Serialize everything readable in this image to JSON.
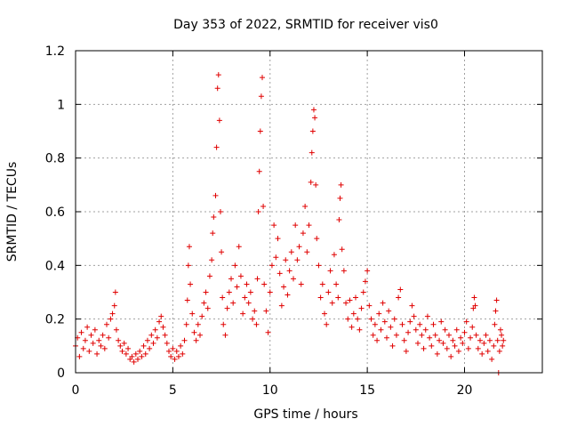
{
  "chart_data": {
    "type": "scatter",
    "title": "Day 353 of 2022, SRMTID for receiver vis0",
    "xlabel": "GPS time / hours",
    "ylabel": "SRMTID / TECUs",
    "xlim": [
      0,
      24
    ],
    "ylim": [
      0,
      1.2
    ],
    "x_ticks": [
      0,
      5,
      10,
      15,
      20
    ],
    "x_tick_labels": [
      "0",
      "5",
      "10",
      "15",
      "20"
    ],
    "y_ticks": [
      0,
      0.2,
      0.4,
      0.6,
      0.8,
      1,
      1.2
    ],
    "y_tick_labels": [
      "0",
      "0.2",
      "0.4",
      "0.6",
      "0.8",
      "1",
      "1.2"
    ],
    "grid": true,
    "marker": "plus",
    "color": "#e00000",
    "series": [
      {
        "name": "vis0",
        "points": [
          [
            0.0,
            0.1
          ],
          [
            0.1,
            0.13
          ],
          [
            0.2,
            0.06
          ],
          [
            0.3,
            0.15
          ],
          [
            0.4,
            0.09
          ],
          [
            0.5,
            0.12
          ],
          [
            0.6,
            0.17
          ],
          [
            0.7,
            0.08
          ],
          [
            0.8,
            0.14
          ],
          [
            0.9,
            0.11
          ],
          [
            1.0,
            0.16
          ],
          [
            1.1,
            0.07
          ],
          [
            1.2,
            0.12
          ],
          [
            1.3,
            0.1
          ],
          [
            1.4,
            0.14
          ],
          [
            1.5,
            0.09
          ],
          [
            1.6,
            0.18
          ],
          [
            1.7,
            0.13
          ],
          [
            1.8,
            0.2
          ],
          [
            1.9,
            0.22
          ],
          [
            2.0,
            0.25
          ],
          [
            2.05,
            0.3
          ],
          [
            2.1,
            0.16
          ],
          [
            2.2,
            0.12
          ],
          [
            2.3,
            0.1
          ],
          [
            2.4,
            0.08
          ],
          [
            2.5,
            0.11
          ],
          [
            2.6,
            0.07
          ],
          [
            2.7,
            0.09
          ],
          [
            2.8,
            0.05
          ],
          [
            2.9,
            0.06
          ],
          [
            3.0,
            0.04
          ],
          [
            3.1,
            0.07
          ],
          [
            3.2,
            0.05
          ],
          [
            3.3,
            0.08
          ],
          [
            3.4,
            0.06
          ],
          [
            3.5,
            0.1
          ],
          [
            3.6,
            0.07
          ],
          [
            3.7,
            0.12
          ],
          [
            3.8,
            0.09
          ],
          [
            3.9,
            0.14
          ],
          [
            4.0,
            0.11
          ],
          [
            4.1,
            0.16
          ],
          [
            4.2,
            0.13
          ],
          [
            4.3,
            0.19
          ],
          [
            4.4,
            0.21
          ],
          [
            4.5,
            0.17
          ],
          [
            4.6,
            0.14
          ],
          [
            4.7,
            0.11
          ],
          [
            4.8,
            0.08
          ],
          [
            4.9,
            0.06
          ],
          [
            5.0,
            0.09
          ],
          [
            5.1,
            0.05
          ],
          [
            5.2,
            0.08
          ],
          [
            5.3,
            0.06
          ],
          [
            5.4,
            0.1
          ],
          [
            5.5,
            0.07
          ],
          [
            5.6,
            0.12
          ],
          [
            5.7,
            0.18
          ],
          [
            5.75,
            0.27
          ],
          [
            5.8,
            0.4
          ],
          [
            5.85,
            0.47
          ],
          [
            5.9,
            0.33
          ],
          [
            6.0,
            0.22
          ],
          [
            6.1,
            0.15
          ],
          [
            6.2,
            0.12
          ],
          [
            6.3,
            0.18
          ],
          [
            6.4,
            0.14
          ],
          [
            6.5,
            0.21
          ],
          [
            6.6,
            0.26
          ],
          [
            6.7,
            0.3
          ],
          [
            6.8,
            0.24
          ],
          [
            6.9,
            0.36
          ],
          [
            7.0,
            0.42
          ],
          [
            7.05,
            0.52
          ],
          [
            7.1,
            0.58
          ],
          [
            7.2,
            0.66
          ],
          [
            7.25,
            0.84
          ],
          [
            7.3,
            1.06
          ],
          [
            7.35,
            1.11
          ],
          [
            7.4,
            0.94
          ],
          [
            7.45,
            0.6
          ],
          [
            7.5,
            0.45
          ],
          [
            7.55,
            0.28
          ],
          [
            7.6,
            0.18
          ],
          [
            7.7,
            0.14
          ],
          [
            7.8,
            0.24
          ],
          [
            7.9,
            0.3
          ],
          [
            8.0,
            0.35
          ],
          [
            8.1,
            0.26
          ],
          [
            8.2,
            0.4
          ],
          [
            8.3,
            0.32
          ],
          [
            8.4,
            0.47
          ],
          [
            8.5,
            0.36
          ],
          [
            8.6,
            0.22
          ],
          [
            8.7,
            0.28
          ],
          [
            8.8,
            0.33
          ],
          [
            8.9,
            0.26
          ],
          [
            9.0,
            0.3
          ],
          [
            9.1,
            0.2
          ],
          [
            9.2,
            0.23
          ],
          [
            9.3,
            0.18
          ],
          [
            9.35,
            0.35
          ],
          [
            9.4,
            0.6
          ],
          [
            9.45,
            0.75
          ],
          [
            9.5,
            0.9
          ],
          [
            9.55,
            1.03
          ],
          [
            9.6,
            1.1
          ],
          [
            9.65,
            0.62
          ],
          [
            9.7,
            0.33
          ],
          [
            9.8,
            0.23
          ],
          [
            9.9,
            0.15
          ],
          [
            10.0,
            0.3
          ],
          [
            10.1,
            0.4
          ],
          [
            10.2,
            0.55
          ],
          [
            10.3,
            0.43
          ],
          [
            10.4,
            0.5
          ],
          [
            10.5,
            0.37
          ],
          [
            10.6,
            0.25
          ],
          [
            10.7,
            0.32
          ],
          [
            10.8,
            0.42
          ],
          [
            10.9,
            0.29
          ],
          [
            11.0,
            0.38
          ],
          [
            11.1,
            0.45
          ],
          [
            11.2,
            0.35
          ],
          [
            11.3,
            0.55
          ],
          [
            11.4,
            0.42
          ],
          [
            11.5,
            0.47
          ],
          [
            11.6,
            0.33
          ],
          [
            11.7,
            0.52
          ],
          [
            11.8,
            0.62
          ],
          [
            11.9,
            0.45
          ],
          [
            12.0,
            0.55
          ],
          [
            12.1,
            0.71
          ],
          [
            12.15,
            0.82
          ],
          [
            12.2,
            0.9
          ],
          [
            12.25,
            0.98
          ],
          [
            12.3,
            0.95
          ],
          [
            12.35,
            0.7
          ],
          [
            12.4,
            0.5
          ],
          [
            12.5,
            0.4
          ],
          [
            12.6,
            0.28
          ],
          [
            12.7,
            0.33
          ],
          [
            12.8,
            0.22
          ],
          [
            12.9,
            0.18
          ],
          [
            13.0,
            0.3
          ],
          [
            13.1,
            0.38
          ],
          [
            13.2,
            0.26
          ],
          [
            13.3,
            0.44
          ],
          [
            13.4,
            0.33
          ],
          [
            13.5,
            0.28
          ],
          [
            13.55,
            0.57
          ],
          [
            13.6,
            0.65
          ],
          [
            13.65,
            0.7
          ],
          [
            13.7,
            0.46
          ],
          [
            13.8,
            0.38
          ],
          [
            13.9,
            0.26
          ],
          [
            14.0,
            0.2
          ],
          [
            14.1,
            0.27
          ],
          [
            14.2,
            0.17
          ],
          [
            14.3,
            0.22
          ],
          [
            14.4,
            0.28
          ],
          [
            14.5,
            0.2
          ],
          [
            14.6,
            0.16
          ],
          [
            14.7,
            0.24
          ],
          [
            14.8,
            0.3
          ],
          [
            14.9,
            0.34
          ],
          [
            15.0,
            0.38
          ],
          [
            15.1,
            0.25
          ],
          [
            15.2,
            0.2
          ],
          [
            15.3,
            0.14
          ],
          [
            15.4,
            0.18
          ],
          [
            15.5,
            0.12
          ],
          [
            15.6,
            0.22
          ],
          [
            15.7,
            0.16
          ],
          [
            15.8,
            0.26
          ],
          [
            15.9,
            0.19
          ],
          [
            16.0,
            0.13
          ],
          [
            16.1,
            0.23
          ],
          [
            16.2,
            0.17
          ],
          [
            16.3,
            0.1
          ],
          [
            16.4,
            0.2
          ],
          [
            16.5,
            0.14
          ],
          [
            16.6,
            0.28
          ],
          [
            16.7,
            0.31
          ],
          [
            16.8,
            0.18
          ],
          [
            16.9,
            0.12
          ],
          [
            17.0,
            0.08
          ],
          [
            17.1,
            0.15
          ],
          [
            17.2,
            0.19
          ],
          [
            17.3,
            0.25
          ],
          [
            17.4,
            0.21
          ],
          [
            17.5,
            0.16
          ],
          [
            17.6,
            0.11
          ],
          [
            17.7,
            0.18
          ],
          [
            17.8,
            0.14
          ],
          [
            17.9,
            0.09
          ],
          [
            18.0,
            0.16
          ],
          [
            18.1,
            0.21
          ],
          [
            18.2,
            0.13
          ],
          [
            18.3,
            0.1
          ],
          [
            18.4,
            0.18
          ],
          [
            18.5,
            0.14
          ],
          [
            18.6,
            0.07
          ],
          [
            18.7,
            0.12
          ],
          [
            18.8,
            0.19
          ],
          [
            18.9,
            0.11
          ],
          [
            19.0,
            0.16
          ],
          [
            19.1,
            0.09
          ],
          [
            19.2,
            0.14
          ],
          [
            19.3,
            0.06
          ],
          [
            19.4,
            0.12
          ],
          [
            19.5,
            0.1
          ],
          [
            19.6,
            0.16
          ],
          [
            19.7,
            0.08
          ],
          [
            19.8,
            0.13
          ],
          [
            19.9,
            0.11
          ],
          [
            20.0,
            0.15
          ],
          [
            20.1,
            0.19
          ],
          [
            20.2,
            0.09
          ],
          [
            20.3,
            0.13
          ],
          [
            20.4,
            0.17
          ],
          [
            20.45,
            0.24
          ],
          [
            20.5,
            0.28
          ],
          [
            20.55,
            0.25
          ],
          [
            20.6,
            0.14
          ],
          [
            20.7,
            0.09
          ],
          [
            20.8,
            0.12
          ],
          [
            20.9,
            0.07
          ],
          [
            21.0,
            0.11
          ],
          [
            21.1,
            0.14
          ],
          [
            21.2,
            0.08
          ],
          [
            21.3,
            0.12
          ],
          [
            21.4,
            0.05
          ],
          [
            21.5,
            0.1
          ],
          [
            21.55,
            0.18
          ],
          [
            21.6,
            0.23
          ],
          [
            21.65,
            0.27
          ],
          [
            21.7,
            0.12
          ],
          [
            21.75,
            0.0
          ],
          [
            21.8,
            0.08
          ],
          [
            21.85,
            0.16
          ],
          [
            21.9,
            0.14
          ],
          [
            21.95,
            0.1
          ],
          [
            22.0,
            0.12
          ]
        ]
      }
    ]
  }
}
